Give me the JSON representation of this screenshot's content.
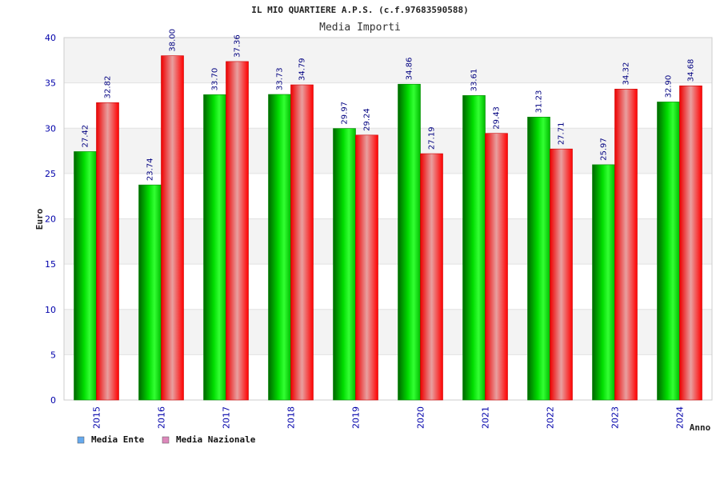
{
  "chart_data": {
    "type": "bar",
    "title": "IL MIO QUARTIERE A.P.S. (c.f.97683590588)",
    "subtitle": "Media Importi",
    "xlabel": "Anno",
    "ylabel": "Euro",
    "ylim": [
      0,
      40
    ],
    "yticks": [
      0,
      5,
      10,
      15,
      20,
      25,
      30,
      35,
      40
    ],
    "grid": true,
    "legend_position": "bottom-left",
    "categories": [
      "2015",
      "2016",
      "2017",
      "2018",
      "2019",
      "2020",
      "2021",
      "2022",
      "2023",
      "2024"
    ],
    "series": [
      {
        "name": "Media Ente",
        "values": [
          27.42,
          23.74,
          33.7,
          33.73,
          29.97,
          34.86,
          33.61,
          31.23,
          25.97,
          32.9
        ],
        "labels": [
          "27.42",
          "23.74",
          "33.70",
          "33.73",
          "29.97",
          "34.86",
          "33.61",
          "31.23",
          "25.97",
          "32.90"
        ],
        "color": "#00cc00",
        "legend_color": "#66aaee"
      },
      {
        "name": "Media Nazionale",
        "values": [
          32.82,
          38.0,
          37.36,
          34.79,
          29.24,
          27.19,
          29.43,
          27.71,
          34.32,
          34.68
        ],
        "labels": [
          "32.82",
          "38.00",
          "37.36",
          "34.79",
          "29.24",
          "27.19",
          "29.43",
          "27.71",
          "34.32",
          "34.68"
        ],
        "color": "#ff0000",
        "legend_color": "#dd88bb"
      }
    ]
  }
}
